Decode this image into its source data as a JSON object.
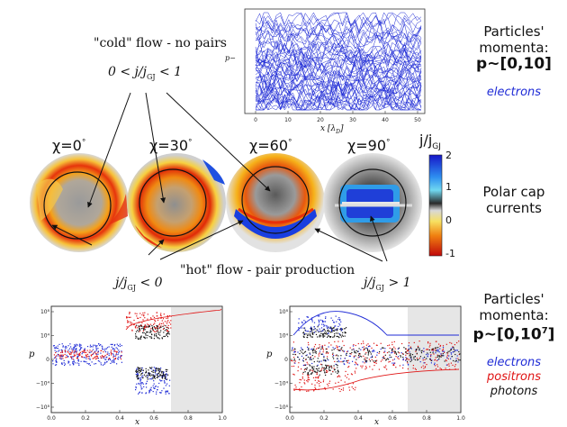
{
  "top_plot": {
    "ylabel": "p−",
    "xlabel": "x [λ",
    "xlabel_sub": "D",
    "xlabel_end": "]",
    "xticks": [
      "0",
      "10",
      "20",
      "30",
      "40",
      "50"
    ]
  },
  "cold_flow_label": "\"cold\" flow - no pairs",
  "cold_flow_math": "0 < j/j",
  "cold_flow_math_sub": "GJ",
  "cold_flow_math_end": " < 1",
  "top_right": {
    "line1": "Particles'",
    "line2": "momenta:",
    "momenta": "p~[0,10]",
    "legend": "electrons"
  },
  "caps": [
    {
      "chi": "χ=0",
      "deg": "°"
    },
    {
      "chi": "χ=30",
      "deg": "°"
    },
    {
      "chi": "χ=60",
      "deg": "°"
    },
    {
      "chi": "χ=90",
      "deg": "°"
    }
  ],
  "colorbar": {
    "title": "j/j",
    "title_sub": "GJ",
    "ticks": [
      "2",
      "1",
      "0",
      "-1"
    ]
  },
  "middle_right": {
    "line1": "Polar cap",
    "line2": "currents"
  },
  "neg_math": "j/j",
  "neg_math_sub": "GJ",
  "neg_math_end": " < 0",
  "hot_flow_label": "\"hot\" flow - pair production",
  "gt_math": "j/j",
  "gt_math_sub": "GJ",
  "gt_math_end": " > 1",
  "bottom_left_plot": {
    "ylabel": "p",
    "xlabel": "x",
    "xticks": [
      "0.0",
      "0.2",
      "0.4",
      "0.6",
      "0.8",
      "1.0"
    ],
    "yticks": [
      "10⁸",
      "10⁴",
      "0",
      "−10⁴",
      "−10⁸"
    ]
  },
  "bottom_right_plot": {
    "ylabel": "p",
    "xlabel": "x",
    "xticks": [
      "0.0",
      "0.2",
      "0.4",
      "0.6",
      "0.8",
      "1.0"
    ],
    "yticks": [
      "10⁸",
      "10⁴",
      "0",
      "−10⁴",
      "−10⁸"
    ]
  },
  "bottom_right": {
    "line1": "Particles'",
    "line2": "momenta:",
    "momenta": "p~[0,10",
    "momenta_sup": "7",
    "momenta_end": "]",
    "legend_electrons": "electrons",
    "legend_positrons": "positrons",
    "legend_photons": "photons"
  },
  "colors": {
    "electrons": "#1f2bd6",
    "positrons": "#e01515",
    "photons": "#111111",
    "cap_hot": "#e8300a",
    "cap_warm": "#f6b21a",
    "cap_gray": "#8a8a8a",
    "cap_blue": "#1a3fe0",
    "cap_cyan": "#35a8f0"
  }
}
